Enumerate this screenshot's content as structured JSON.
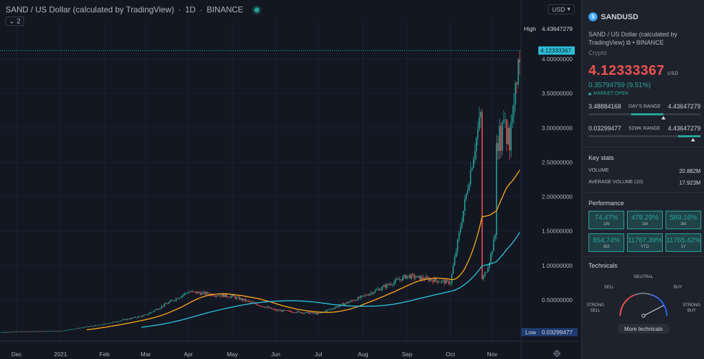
{
  "header": {
    "title": "SAND / US Dollar (calculated by TradingView)",
    "interval": "1D",
    "exchange": "BINANCE",
    "indicators_count": "2",
    "currency": "USD"
  },
  "chart": {
    "high_label": "High",
    "high_value": "4.43647279",
    "low_label": "Low",
    "low_value": "0.03299477",
    "current_price_tag": "4.12333367",
    "y_ticks": [
      "4.00000000",
      "3.50000000",
      "3.00000000",
      "2.50000000",
      "2.00000000",
      "1.50000000",
      "1.00000000",
      "0.50000000"
    ],
    "x_ticks": [
      "Dec",
      "2021",
      "Feb",
      "Mar",
      "Apr",
      "May",
      "Jun",
      "Jul",
      "Aug",
      "Sep",
      "Oct",
      "Nov"
    ],
    "colors": {
      "up": "#26a69a",
      "down": "#ef5350",
      "ma_short": "#f7a21b",
      "ma_long": "#2bbfd6",
      "price_line": "#2bbfd6"
    }
  },
  "chart_data": {
    "type": "line",
    "title": "SAND / US Dollar (calculated by TradingView)",
    "xlabel": "",
    "ylabel": "",
    "ylim": [
      0,
      4.6
    ],
    "x": [
      "Nov",
      "Dec",
      "2021",
      "Feb",
      "Mar",
      "Apr",
      "May",
      "Jun",
      "Jul",
      "Aug",
      "Sep",
      "Oct",
      "Nov"
    ],
    "series": [
      {
        "values": [
          0.03,
          0.04,
          0.05,
          0.15,
          0.28,
          0.62,
          0.55,
          0.35,
          0.3,
          0.55,
          0.85,
          0.75,
          4.12
        ]
      },
      {
        "values": [
          null,
          null,
          null,
          null,
          0.1,
          0.35,
          0.6,
          0.5,
          0.3,
          0.45,
          0.62,
          0.7,
          1.9
        ]
      },
      {
        "values": [
          null,
          null,
          null,
          null,
          null,
          0.05,
          0.25,
          0.32,
          0.3,
          0.38,
          0.48,
          0.55,
          1.0
        ]
      }
    ]
  },
  "panel": {
    "symbol": "SANDUSD",
    "logo_letter": "S",
    "description": "SAND / US Dollar (calculated by TradingView)",
    "exchange": "BINANCE",
    "type": "Crypto",
    "price": "4.12333367",
    "price_currency": "USD",
    "change": "0.35794759 (9.51%)",
    "market_status": "MARKET OPEN",
    "days_range": {
      "low": "3.48884168",
      "label": "DAY'S RANGE",
      "high": "4.43647279",
      "fill": 0.67
    },
    "week52_range": {
      "low": "0.03299477",
      "label": "52WK RANGE",
      "high": "4.43647279",
      "fill": 0.93
    },
    "key_stats_title": "Key stats",
    "stats": [
      {
        "label": "VOLUME",
        "value": "20.882M"
      },
      {
        "label": "AVERAGE VOLUME (10)",
        "value": "17.923M"
      }
    ],
    "performance_title": "Performance",
    "performance": [
      {
        "value": "74.47%",
        "label": "1W"
      },
      {
        "value": "478.29%",
        "label": "1M"
      },
      {
        "value": "589.16%",
        "label": "3M"
      },
      {
        "value": "854.74%",
        "label": "6M"
      },
      {
        "value": "11767.39%",
        "label": "YTD"
      },
      {
        "value": "11765.42%",
        "label": "1Y"
      }
    ],
    "technicals_title": "Technicals",
    "gauge": {
      "strong_sell": "STRONG SELL",
      "sell": "SELL",
      "neutral": "NEUTRAL",
      "buy": "BUY",
      "strong_buy": "STRONG BUY",
      "level": 0.85
    },
    "more_technicals": "More technicals"
  }
}
